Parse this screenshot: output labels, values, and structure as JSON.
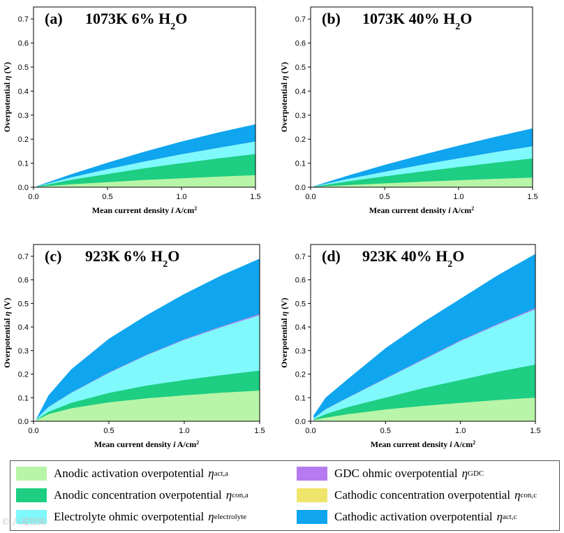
{
  "colors": {
    "act_a": "#b8f5a8",
    "con_a": "#1ece82",
    "electrolyte": "#7ff9fb",
    "gdc": "#b57bef",
    "con_c": "#efe56a",
    "act_c": "#0fa5ef"
  },
  "legend": [
    {
      "key": "act_a",
      "label": "Anodic activation overpotential",
      "sub": "act,a"
    },
    {
      "key": "gdc",
      "label": "GDC ohmic overpotential",
      "sub": "GDC"
    },
    {
      "key": "con_a",
      "label": "Anodic concentration overpotential",
      "sub": "con,a"
    },
    {
      "key": "con_c",
      "label": "Cathodic concentration overpotential",
      "sub": "con,c"
    },
    {
      "key": "electrolyte",
      "label": "Electrolyte ohmic overpotential",
      "sub": "electrolyte"
    },
    {
      "key": "act_c",
      "label": "Cathodic activation overpotential",
      "sub": "act,c"
    }
  ],
  "eta_symbol": "η",
  "watermark": "© 八戒视频",
  "chart_data": [
    {
      "type": "area",
      "panel": "(a)",
      "title": "1073K 6% H",
      "title_sub": "2",
      "title_tail": "O",
      "xlabel": "Mean current density i A/cm",
      "xlabel_sup": "2",
      "ylabel": "Overpotential η (V)",
      "xlim": [
        0,
        1.5
      ],
      "ylim": [
        0,
        0.75
      ],
      "xticks": [
        0.0,
        0.5,
        1.0,
        1.5
      ],
      "xtick_labels": [
        "0.0",
        "0.5",
        "1.0",
        "1.5"
      ],
      "yticks": [
        0.0,
        0.1,
        0.2,
        0.3,
        0.4,
        0.5,
        0.6,
        0.7
      ],
      "ytick_labels": [
        "0.0",
        "0.1",
        "0.2",
        "0.3",
        "0.4",
        "0.5",
        "0.6",
        "0.7"
      ],
      "x": [
        0.02,
        0.25,
        0.5,
        0.75,
        1.0,
        1.25,
        1.5
      ],
      "cumulative": [
        {
          "key": "act_a",
          "values": [
            0.001,
            0.012,
            0.021,
            0.03,
            0.037,
            0.044,
            0.05
          ]
        },
        {
          "key": "con_a",
          "values": [
            0.002,
            0.03,
            0.055,
            0.079,
            0.1,
            0.12,
            0.138
          ]
        },
        {
          "key": "electrolyte",
          "values": [
            0.003,
            0.04,
            0.075,
            0.107,
            0.137,
            0.164,
            0.19
          ]
        },
        {
          "key": "gdc",
          "values": [
            0.003,
            0.04,
            0.075,
            0.107,
            0.137,
            0.164,
            0.19
          ]
        },
        {
          "key": "con_c",
          "values": [
            0.003,
            0.04,
            0.075,
            0.107,
            0.137,
            0.164,
            0.19
          ]
        },
        {
          "key": "act_c",
          "values": [
            0.004,
            0.053,
            0.102,
            0.148,
            0.19,
            0.228,
            0.262
          ]
        }
      ]
    },
    {
      "type": "area",
      "panel": "(b)",
      "title": "1073K 40% H",
      "title_sub": "2",
      "title_tail": "O",
      "xlabel": "Mean current density i A/cm",
      "xlabel_sup": "2",
      "ylabel": "Overpotential η (V)",
      "xlim": [
        0,
        1.5
      ],
      "ylim": [
        0,
        0.75
      ],
      "xticks": [
        0.0,
        0.5,
        1.0,
        1.5
      ],
      "xtick_labels": [
        "0.0",
        "0.5",
        "1.0",
        "1.5"
      ],
      "yticks": [
        0.0,
        0.1,
        0.2,
        0.3,
        0.4,
        0.5,
        0.6,
        0.7
      ],
      "ytick_labels": [
        "0.0",
        "0.1",
        "0.2",
        "0.3",
        "0.4",
        "0.5",
        "0.6",
        "0.7"
      ],
      "x": [
        0.02,
        0.25,
        0.5,
        0.75,
        1.0,
        1.25,
        1.5
      ],
      "cumulative": [
        {
          "key": "act_a",
          "values": [
            0.001,
            0.009,
            0.016,
            0.023,
            0.029,
            0.035,
            0.04
          ]
        },
        {
          "key": "con_a",
          "values": [
            0.002,
            0.024,
            0.045,
            0.065,
            0.084,
            0.102,
            0.12
          ]
        },
        {
          "key": "electrolyte",
          "values": [
            0.003,
            0.034,
            0.064,
            0.093,
            0.12,
            0.146,
            0.17
          ]
        },
        {
          "key": "gdc",
          "values": [
            0.003,
            0.034,
            0.064,
            0.093,
            0.12,
            0.146,
            0.17
          ]
        },
        {
          "key": "con_c",
          "values": [
            0.003,
            0.034,
            0.064,
            0.093,
            0.12,
            0.146,
            0.17
          ]
        },
        {
          "key": "act_c",
          "values": [
            0.004,
            0.048,
            0.093,
            0.134,
            0.173,
            0.21,
            0.245
          ]
        }
      ]
    },
    {
      "type": "area",
      "panel": "(c)",
      "title": "923K 6% H",
      "title_sub": "2",
      "title_tail": "O",
      "xlabel": "Mean current density i A/cm",
      "xlabel_sup": "2",
      "ylabel": "Overpotential η (V)",
      "xlim": [
        0,
        1.5
      ],
      "ylim": [
        0,
        0.75
      ],
      "xticks": [
        0.0,
        0.5,
        1.0,
        1.5
      ],
      "xtick_labels": [
        "0.0",
        "0.5",
        "1.0",
        "1.5"
      ],
      "yticks": [
        0.0,
        0.1,
        0.2,
        0.3,
        0.4,
        0.5,
        0.6,
        0.7
      ],
      "ytick_labels": [
        "0.0",
        "0.1",
        "0.2",
        "0.3",
        "0.4",
        "0.5",
        "0.6",
        "0.7"
      ],
      "x": [
        0.02,
        0.1,
        0.25,
        0.5,
        0.75,
        1.0,
        1.25,
        1.5
      ],
      "cumulative": [
        {
          "key": "act_a",
          "values": [
            0.005,
            0.03,
            0.055,
            0.08,
            0.097,
            0.11,
            0.121,
            0.13
          ]
        },
        {
          "key": "con_a",
          "values": [
            0.007,
            0.04,
            0.078,
            0.12,
            0.151,
            0.175,
            0.196,
            0.215
          ]
        },
        {
          "key": "electrolyte",
          "values": [
            0.01,
            0.06,
            0.12,
            0.205,
            0.28,
            0.345,
            0.4,
            0.45
          ]
        },
        {
          "key": "gdc",
          "values": [
            0.01,
            0.061,
            0.121,
            0.207,
            0.282,
            0.348,
            0.403,
            0.455
          ]
        },
        {
          "key": "con_c",
          "values": [
            0.01,
            0.061,
            0.121,
            0.207,
            0.282,
            0.348,
            0.403,
            0.455
          ]
        },
        {
          "key": "act_c",
          "values": [
            0.012,
            0.11,
            0.22,
            0.35,
            0.45,
            0.54,
            0.62,
            0.69
          ]
        }
      ]
    },
    {
      "type": "area",
      "panel": "(d)",
      "title": "923K 40% H",
      "title_sub": "2",
      "title_tail": "O",
      "xlabel": "Mean current density i A/cm",
      "xlabel_sup": "2",
      "ylabel": "Overpotential η (V)",
      "xlim": [
        0,
        1.5
      ],
      "ylim": [
        0,
        0.75
      ],
      "xticks": [
        0.0,
        0.5,
        1.0,
        1.5
      ],
      "xtick_labels": [
        "0.0",
        "0.5",
        "1.0",
        "1.5"
      ],
      "yticks": [
        0.0,
        0.1,
        0.2,
        0.3,
        0.4,
        0.5,
        0.6,
        0.7
      ],
      "ytick_labels": [
        "0.0",
        "0.1",
        "0.2",
        "0.3",
        "0.4",
        "0.5",
        "0.6",
        "0.7"
      ],
      "x": [
        0.02,
        0.1,
        0.25,
        0.5,
        0.75,
        1.0,
        1.25,
        1.5
      ],
      "cumulative": [
        {
          "key": "act_a",
          "values": [
            0.005,
            0.015,
            0.03,
            0.05,
            0.065,
            0.078,
            0.09,
            0.1
          ]
        },
        {
          "key": "con_a",
          "values": [
            0.008,
            0.03,
            0.06,
            0.1,
            0.14,
            0.175,
            0.21,
            0.24
          ]
        },
        {
          "key": "electrolyte",
          "values": [
            0.012,
            0.05,
            0.1,
            0.18,
            0.26,
            0.34,
            0.41,
            0.475
          ]
        },
        {
          "key": "gdc",
          "values": [
            0.012,
            0.051,
            0.101,
            0.182,
            0.263,
            0.343,
            0.413,
            0.48
          ]
        },
        {
          "key": "con_c",
          "values": [
            0.012,
            0.051,
            0.101,
            0.182,
            0.263,
            0.343,
            0.413,
            0.48
          ]
        },
        {
          "key": "act_c",
          "values": [
            0.025,
            0.1,
            0.18,
            0.31,
            0.42,
            0.52,
            0.62,
            0.71
          ]
        }
      ]
    }
  ]
}
